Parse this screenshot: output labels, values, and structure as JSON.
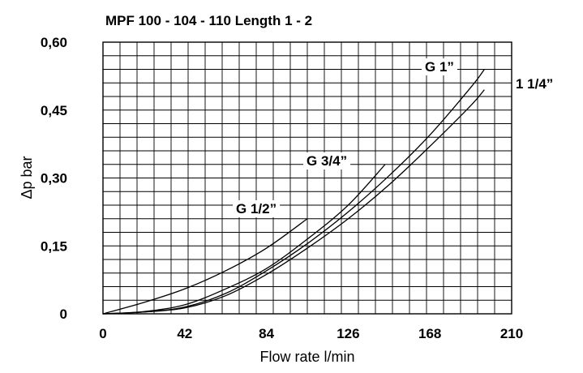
{
  "chart_data": {
    "type": "line",
    "title": "MPF 100 - 104 - 110 Length 1 - 2",
    "xlabel": "Flow rate l/min",
    "ylabel": "Δp bar",
    "xlim": [
      0,
      210
    ],
    "ylim": [
      0,
      0.6
    ],
    "grid": true,
    "x_ticks": [
      0,
      42,
      84,
      126,
      168,
      210
    ],
    "x_tick_labels": [
      "0",
      "42",
      "84",
      "126",
      "168",
      "210"
    ],
    "y_ticks": [
      0,
      0.15,
      0.3,
      0.45,
      0.6
    ],
    "y_tick_labels": [
      "0",
      "0,15",
      "0,30",
      "0,45",
      "0,60"
    ],
    "series": [
      {
        "name": "G 1/2”",
        "x": [
          0,
          21,
          42,
          63,
          84,
          105
        ],
        "y": [
          0,
          0.025,
          0.055,
          0.095,
          0.145,
          0.21
        ]
      },
      {
        "name": "G 3/4”",
        "x": [
          0,
          21,
          42,
          63,
          84,
          105,
          126,
          145
        ],
        "y": [
          0,
          0.005,
          0.02,
          0.055,
          0.1,
          0.165,
          0.24,
          0.33
        ]
      },
      {
        "name": "G 1”",
        "x": [
          0,
          21,
          42,
          63,
          84,
          105,
          126,
          147,
          168,
          189,
          196
        ],
        "y": [
          0,
          0.004,
          0.015,
          0.045,
          0.095,
          0.155,
          0.225,
          0.305,
          0.395,
          0.5,
          0.54
        ]
      },
      {
        "name": "1 1/4”",
        "x": [
          0,
          21,
          42,
          63,
          84,
          105,
          126,
          147,
          168,
          189,
          196
        ],
        "y": [
          0,
          0.004,
          0.013,
          0.04,
          0.087,
          0.145,
          0.21,
          0.285,
          0.37,
          0.46,
          0.495
        ]
      }
    ]
  }
}
